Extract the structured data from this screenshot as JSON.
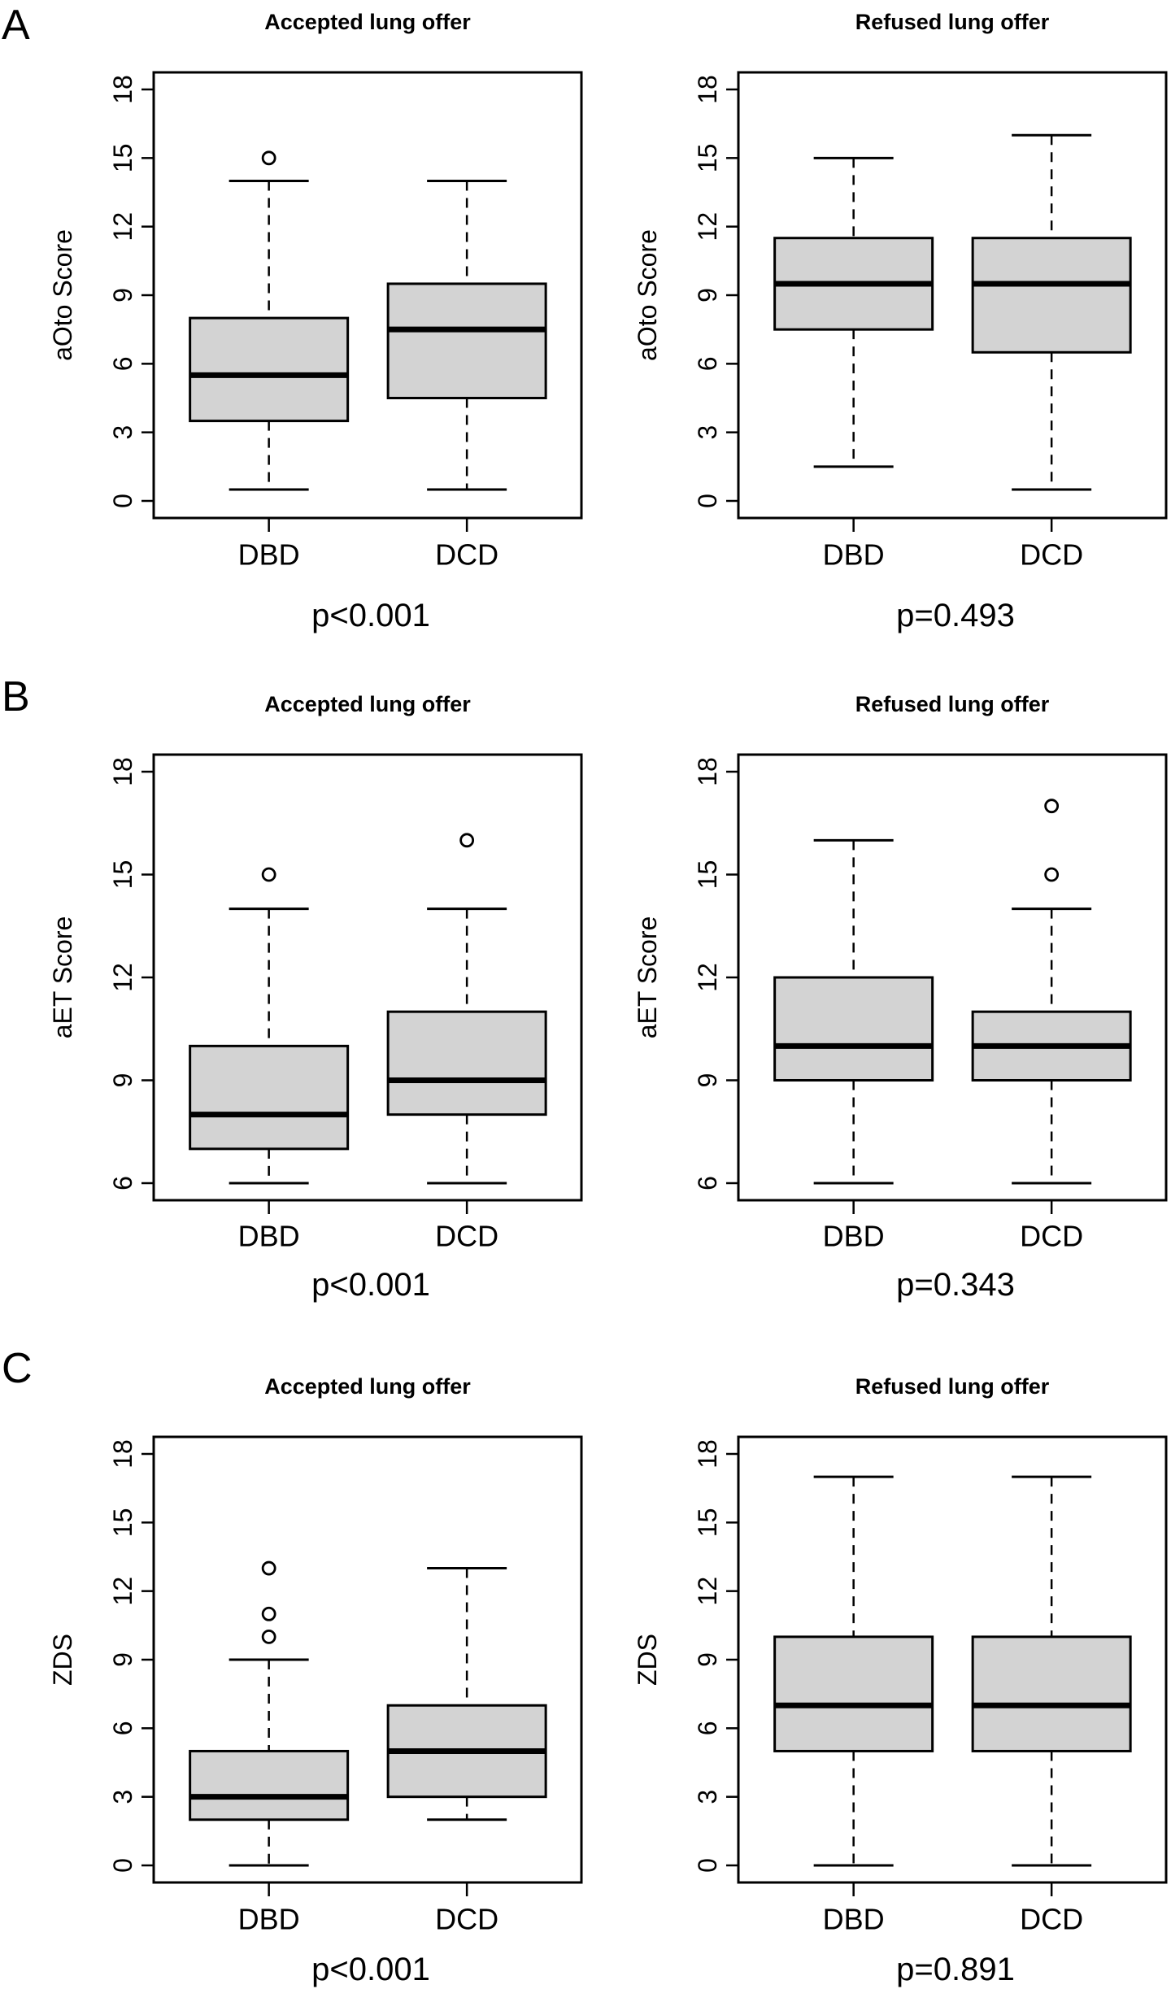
{
  "figure": {
    "box_fill": "#d3d3d3",
    "line_color": "#000000",
    "background": "#ffffff"
  },
  "chart_data": [
    {
      "type": "boxplot",
      "panel": "A",
      "title": "Accepted lung offer",
      "ylabel": "aOto Score",
      "xlabel": "",
      "ylim": [
        0,
        18
      ],
      "yticks": [
        0,
        3,
        6,
        9,
        12,
        15,
        18
      ],
      "categories": [
        "DBD",
        "DCD"
      ],
      "boxes": [
        {
          "name": "DBD",
          "whisker_low": 0.5,
          "q1": 3.5,
          "median": 5.5,
          "q3": 8,
          "whisker_high": 14,
          "outliers": [
            15
          ]
        },
        {
          "name": "DCD",
          "whisker_low": 0.5,
          "q1": 4.5,
          "median": 7.5,
          "q3": 9.5,
          "whisker_high": 14,
          "outliers": []
        }
      ],
      "p_value": "p<0.001",
      "grid": false
    },
    {
      "type": "boxplot",
      "panel": "",
      "title": "Refused lung offer",
      "ylabel": "aOto Score",
      "xlabel": "",
      "ylim": [
        0,
        18
      ],
      "yticks": [
        0,
        3,
        6,
        9,
        12,
        15,
        18
      ],
      "categories": [
        "DBD",
        "DCD"
      ],
      "boxes": [
        {
          "name": "DBD",
          "whisker_low": 1.5,
          "q1": 7.5,
          "median": 9.5,
          "q3": 11.5,
          "whisker_high": 15,
          "outliers": []
        },
        {
          "name": "DCD",
          "whisker_low": 0.5,
          "q1": 6.5,
          "median": 9.5,
          "q3": 11.5,
          "whisker_high": 16,
          "outliers": []
        }
      ],
      "p_value": "p=0.493",
      "grid": false
    },
    {
      "type": "boxplot",
      "panel": "B",
      "title": "Accepted lung offer",
      "ylabel": "aET Score",
      "xlabel": "",
      "ylim": [
        6,
        18
      ],
      "yticks": [
        6,
        9,
        12,
        15,
        18
      ],
      "categories": [
        "DBD",
        "DCD"
      ],
      "boxes": [
        {
          "name": "DBD",
          "whisker_low": 6,
          "q1": 7,
          "median": 8,
          "q3": 10,
          "whisker_high": 14,
          "outliers": [
            15
          ]
        },
        {
          "name": "DCD",
          "whisker_low": 6,
          "q1": 8,
          "median": 9,
          "q3": 11,
          "whisker_high": 14,
          "outliers": [
            16
          ]
        }
      ],
      "p_value": "p<0.001",
      "grid": false
    },
    {
      "type": "boxplot",
      "panel": "",
      "title": "Refused lung offer",
      "ylabel": "aET Score",
      "xlabel": "",
      "ylim": [
        6,
        18
      ],
      "yticks": [
        6,
        9,
        12,
        15,
        18
      ],
      "categories": [
        "DBD",
        "DCD"
      ],
      "boxes": [
        {
          "name": "DBD",
          "whisker_low": 6,
          "q1": 9,
          "median": 10,
          "q3": 12,
          "whisker_high": 16,
          "outliers": []
        },
        {
          "name": "DCD",
          "whisker_low": 6,
          "q1": 9,
          "median": 10,
          "q3": 11,
          "whisker_high": 14,
          "outliers": [
            15,
            17
          ]
        }
      ],
      "p_value": "p=0.343",
      "grid": false
    },
    {
      "type": "boxplot",
      "panel": "C",
      "title": "Accepted lung offer",
      "ylabel": "ZDS",
      "xlabel": "",
      "ylim": [
        0,
        18
      ],
      "yticks": [
        0,
        3,
        6,
        9,
        12,
        15,
        18
      ],
      "categories": [
        "DBD",
        "DCD"
      ],
      "boxes": [
        {
          "name": "DBD",
          "whisker_low": 0,
          "q1": 2,
          "median": 3,
          "q3": 5,
          "whisker_high": 9,
          "outliers": [
            10,
            11,
            13
          ]
        },
        {
          "name": "DCD",
          "whisker_low": 2,
          "q1": 3,
          "median": 5,
          "q3": 7,
          "whisker_high": 13,
          "outliers": []
        }
      ],
      "p_value": "p<0.001",
      "grid": false
    },
    {
      "type": "boxplot",
      "panel": "",
      "title": "Refused lung offer",
      "ylabel": "ZDS",
      "xlabel": "",
      "ylim": [
        0,
        18
      ],
      "yticks": [
        0,
        3,
        6,
        9,
        12,
        15,
        18
      ],
      "categories": [
        "DBD",
        "DCD"
      ],
      "boxes": [
        {
          "name": "DBD",
          "whisker_low": 0,
          "q1": 5,
          "median": 7,
          "q3": 10,
          "whisker_high": 17,
          "outliers": []
        },
        {
          "name": "DCD",
          "whisker_low": 0,
          "q1": 5,
          "median": 7,
          "q3": 10,
          "whisker_high": 17,
          "outliers": []
        }
      ],
      "p_value": "p=0.891",
      "grid": false
    }
  ]
}
